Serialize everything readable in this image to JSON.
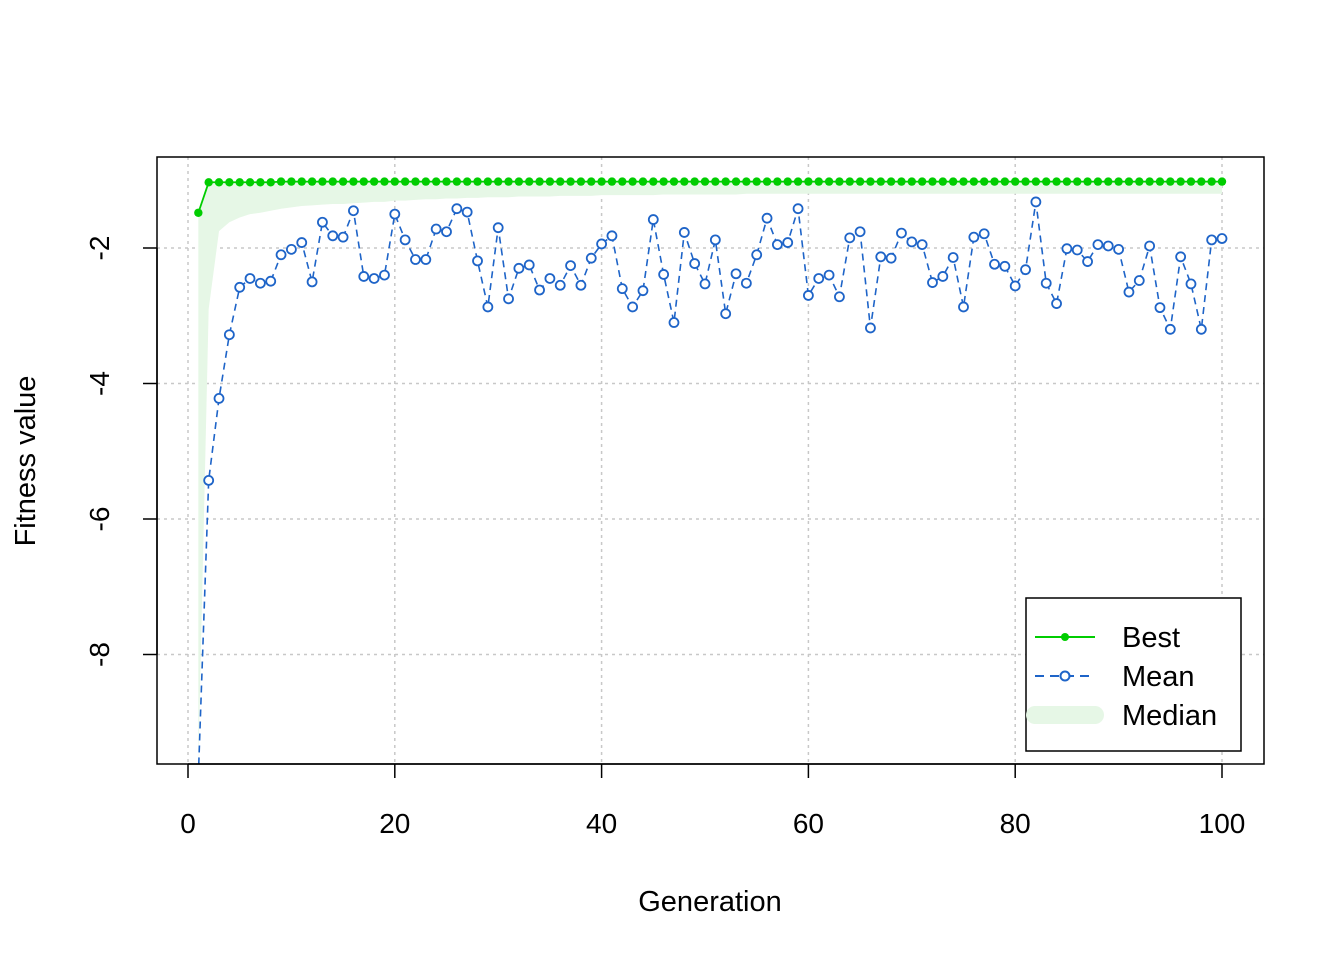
{
  "chart_data": {
    "type": "line",
    "xlabel": "Generation",
    "ylabel": "Fitness value",
    "xlim": [
      1,
      100
    ],
    "ylim": [
      -9.6,
      -1.35
    ],
    "x_ticks": [
      0,
      20,
      40,
      60,
      80,
      100
    ],
    "y_ticks": [
      -8,
      -6,
      -4,
      -2
    ],
    "grid": true,
    "legend_position": "bottom-right",
    "x": [
      1,
      2,
      3,
      4,
      5,
      6,
      7,
      8,
      9,
      10,
      11,
      12,
      13,
      14,
      15,
      16,
      17,
      18,
      19,
      20,
      21,
      22,
      23,
      24,
      25,
      26,
      27,
      28,
      29,
      30,
      31,
      32,
      33,
      34,
      35,
      36,
      37,
      38,
      39,
      40,
      41,
      42,
      43,
      44,
      45,
      46,
      47,
      48,
      49,
      50,
      51,
      52,
      53,
      54,
      55,
      56,
      57,
      58,
      59,
      60,
      61,
      62,
      63,
      64,
      65,
      66,
      67,
      68,
      69,
      70,
      71,
      72,
      73,
      74,
      75,
      76,
      77,
      78,
      79,
      80,
      81,
      82,
      83,
      84,
      85,
      86,
      87,
      88,
      89,
      90,
      91,
      92,
      93,
      94,
      95,
      96,
      97,
      98,
      99,
      100
    ],
    "series": [
      {
        "name": "Best",
        "color": "#00cd00",
        "style": "solid-dot",
        "values": [
          -1.48,
          -1.03,
          -1.03,
          -1.03,
          -1.03,
          -1.03,
          -1.03,
          -1.03,
          -1.02,
          -1.02,
          -1.02,
          -1.02,
          -1.02,
          -1.02,
          -1.02,
          -1.02,
          -1.02,
          -1.02,
          -1.02,
          -1.02,
          -1.02,
          -1.02,
          -1.02,
          -1.02,
          -1.02,
          -1.02,
          -1.02,
          -1.02,
          -1.02,
          -1.02,
          -1.02,
          -1.02,
          -1.02,
          -1.02,
          -1.02,
          -1.02,
          -1.02,
          -1.02,
          -1.02,
          -1.02,
          -1.02,
          -1.02,
          -1.02,
          -1.02,
          -1.02,
          -1.02,
          -1.02,
          -1.02,
          -1.02,
          -1.02,
          -1.02,
          -1.02,
          -1.02,
          -1.02,
          -1.02,
          -1.02,
          -1.02,
          -1.02,
          -1.02,
          -1.02,
          -1.02,
          -1.02,
          -1.02,
          -1.02,
          -1.02,
          -1.02,
          -1.02,
          -1.02,
          -1.02,
          -1.02,
          -1.02,
          -1.02,
          -1.02,
          -1.02,
          -1.02,
          -1.02,
          -1.02,
          -1.02,
          -1.02,
          -1.02,
          -1.02,
          -1.02,
          -1.02,
          -1.02,
          -1.02,
          -1.02,
          -1.02,
          -1.02,
          -1.02,
          -1.02,
          -1.02,
          -1.02,
          -1.02,
          -1.02,
          -1.02,
          -1.02,
          -1.02,
          -1.02,
          -1.02,
          -1.02
        ]
      },
      {
        "name": "Mean",
        "color": "#1e64c8",
        "style": "dashed-circle",
        "values": [
          -9.8,
          -5.43,
          -4.22,
          -3.28,
          -2.58,
          -2.45,
          -2.52,
          -2.49,
          -2.1,
          -2.02,
          -1.92,
          -2.5,
          -1.62,
          -1.82,
          -1.84,
          -1.45,
          -2.42,
          -2.45,
          -2.4,
          -1.5,
          -1.88,
          -2.17,
          -2.17,
          -1.72,
          -1.76,
          -1.42,
          -1.47,
          -2.19,
          -2.87,
          -1.7,
          -2.75,
          -2.3,
          -2.25,
          -2.62,
          -2.45,
          -2.55,
          -2.26,
          -2.55,
          -2.15,
          -1.94,
          -1.82,
          -2.6,
          -2.87,
          -2.63,
          -1.58,
          -2.39,
          -3.1,
          -1.77,
          -2.23,
          -2.53,
          -1.88,
          -2.97,
          -2.38,
          -2.52,
          -2.1,
          -1.56,
          -1.95,
          -1.92,
          -1.42,
          -2.7,
          -2.45,
          -2.4,
          -2.72,
          -1.85,
          -1.76,
          -3.18,
          -2.13,
          -2.15,
          -1.78,
          -1.91,
          -1.95,
          -2.51,
          -2.42,
          -2.14,
          -2.87,
          -1.84,
          -1.79,
          -2.24,
          -2.27,
          -2.56,
          -2.32,
          -1.32,
          -2.52,
          -2.82,
          -2.01,
          -2.03,
          -2.2,
          -1.95,
          -1.97,
          -2.02,
          -2.65,
          -2.48,
          -1.97,
          -2.88,
          -3.2,
          -2.13,
          -2.53,
          -3.2,
          -1.88,
          -1.86
        ]
      },
      {
        "name": "Median",
        "color": "#e6f7e6",
        "style": "band"
      }
    ],
    "median_band": {
      "lower": [
        -9.6,
        -2.9,
        -1.75,
        -1.62,
        -1.55,
        -1.5,
        -1.48,
        -1.45,
        -1.42,
        -1.4,
        -1.38,
        -1.37,
        -1.36,
        -1.35,
        -1.35,
        -1.34,
        -1.33,
        -1.32,
        -1.32,
        -1.3,
        -1.3,
        -1.29,
        -1.28,
        -1.28,
        -1.27,
        -1.27,
        -1.26,
        -1.26,
        -1.25,
        -1.25,
        -1.25,
        -1.24,
        -1.24,
        -1.24,
        -1.24,
        -1.23,
        -1.23,
        -1.23,
        -1.23,
        -1.22,
        -1.22,
        -1.22,
        -1.22,
        -1.22,
        -1.22,
        -1.21,
        -1.21,
        -1.21,
        -1.21,
        -1.21,
        -1.21,
        -1.21,
        -1.21,
        -1.2,
        -1.2,
        -1.2,
        -1.2,
        -1.2,
        -1.2,
        -1.2,
        -1.2,
        -1.2,
        -1.2,
        -1.2,
        -1.2,
        -1.2,
        -1.2,
        -1.2,
        -1.2,
        -1.2,
        -1.2,
        -1.2,
        -1.2,
        -1.2,
        -1.2,
        -1.2,
        -1.2,
        -1.2,
        -1.2,
        -1.2,
        -1.2,
        -1.2,
        -1.2,
        -1.2,
        -1.2,
        -1.2,
        -1.2,
        -1.2,
        -1.2,
        -1.2,
        -1.2,
        -1.2,
        -1.2,
        -1.2,
        -1.2,
        -1.2,
        -1.2,
        -1.2,
        -1.2,
        -1.2
      ],
      "upper": [
        -1.48,
        -1.03,
        -1.03,
        -1.03,
        -1.03,
        -1.03,
        -1.03,
        -1.03,
        -1.02,
        -1.02,
        -1.02,
        -1.02,
        -1.02,
        -1.02,
        -1.02,
        -1.02,
        -1.02,
        -1.02,
        -1.02,
        -1.02,
        -1.02,
        -1.02,
        -1.02,
        -1.02,
        -1.02,
        -1.02,
        -1.02,
        -1.02,
        -1.02,
        -1.02,
        -1.02,
        -1.02,
        -1.02,
        -1.02,
        -1.02,
        -1.02,
        -1.02,
        -1.02,
        -1.02,
        -1.02,
        -1.02,
        -1.02,
        -1.02,
        -1.02,
        -1.02,
        -1.02,
        -1.02,
        -1.02,
        -1.02,
        -1.02,
        -1.02,
        -1.02,
        -1.02,
        -1.02,
        -1.02,
        -1.02,
        -1.02,
        -1.02,
        -1.02,
        -1.02,
        -1.02,
        -1.02,
        -1.02,
        -1.02,
        -1.02,
        -1.02,
        -1.02,
        -1.02,
        -1.02,
        -1.02,
        -1.02,
        -1.02,
        -1.02,
        -1.02,
        -1.02,
        -1.02,
        -1.02,
        -1.02,
        -1.02,
        -1.02,
        -1.02,
        -1.02,
        -1.02,
        -1.02,
        -1.02,
        -1.02,
        -1.02,
        -1.02,
        -1.02,
        -1.02,
        -1.02,
        -1.02,
        -1.02,
        -1.02,
        -1.02,
        -1.02,
        -1.02,
        -1.02,
        -1.02,
        -1.02
      ]
    },
    "legend": {
      "items": [
        {
          "label": "Best"
        },
        {
          "label": "Mean"
        },
        {
          "label": "Median"
        }
      ]
    }
  }
}
